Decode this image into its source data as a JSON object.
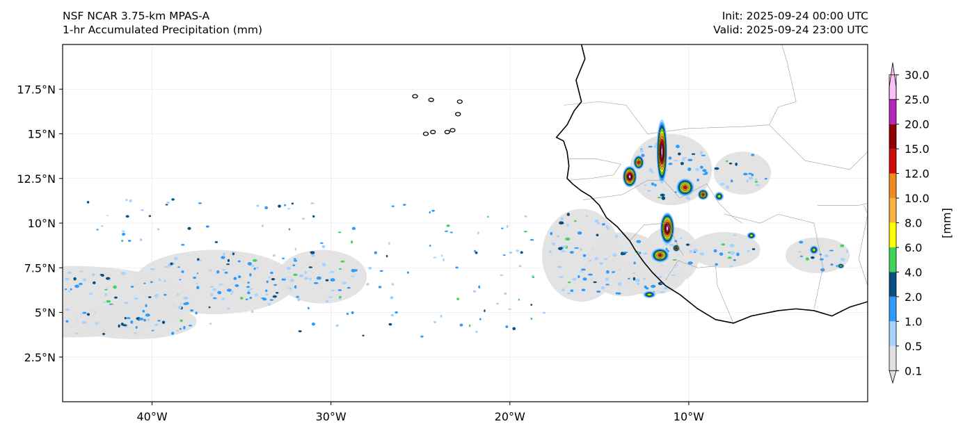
{
  "header": {
    "model": "NSF NCAR 3.75-km MPAS-A",
    "field": "1-hr Accumulated Precipitation (mm)",
    "init": "Init: 2025-09-24 00:00 UTC",
    "valid": "Valid: 2025-09-24 23:00 UTC"
  },
  "map": {
    "lon_range": [
      -45.0,
      0.0
    ],
    "lat_range": [
      0.0,
      20.0
    ],
    "lat_ticks": [
      {
        "value": 2.5,
        "label": "2.5°N"
      },
      {
        "value": 5,
        "label": "5°N"
      },
      {
        "value": 7.5,
        "label": "7.5°N"
      },
      {
        "value": 10,
        "label": "10°N"
      },
      {
        "value": 12.5,
        "label": "12.5°N"
      },
      {
        "value": 15,
        "label": "15°N"
      },
      {
        "value": 17.5,
        "label": "17.5°N"
      }
    ],
    "lon_ticks": [
      {
        "value": -40,
        "label": "40°W"
      },
      {
        "value": -30,
        "label": "30°W"
      },
      {
        "value": -20,
        "label": "20°W"
      },
      {
        "value": -10,
        "label": "10°W"
      }
    ],
    "coastline": [
      [
        -16.0,
        20.0
      ],
      [
        -15.8,
        19.2
      ],
      [
        -16.3,
        18.0
      ],
      [
        -16.0,
        16.8
      ],
      [
        -16.4,
        16.3
      ],
      [
        -16.8,
        15.5
      ],
      [
        -17.4,
        14.8
      ],
      [
        -17.0,
        14.6
      ],
      [
        -16.8,
        14.0
      ],
      [
        -16.7,
        13.2
      ],
      [
        -16.8,
        12.5
      ],
      [
        -16.5,
        12.2
      ],
      [
        -16.0,
        11.8
      ],
      [
        -15.5,
        11.5
      ],
      [
        -15.0,
        11.0
      ],
      [
        -14.6,
        10.3
      ],
      [
        -14.0,
        9.8
      ],
      [
        -13.3,
        9.0
      ],
      [
        -13.0,
        8.5
      ],
      [
        -12.5,
        7.8
      ],
      [
        -12.0,
        7.2
      ],
      [
        -11.3,
        6.5
      ],
      [
        -10.5,
        6.0
      ],
      [
        -9.5,
        5.2
      ],
      [
        -8.5,
        4.6
      ],
      [
        -7.5,
        4.4
      ],
      [
        -6.5,
        4.8
      ],
      [
        -5.0,
        5.1
      ],
      [
        -4.0,
        5.2
      ],
      [
        -3.0,
        5.1
      ],
      [
        -2.0,
        4.8
      ],
      [
        -1.0,
        5.3
      ],
      [
        0.0,
        5.6
      ]
    ],
    "islands": [
      [
        -25.3,
        17.1
      ],
      [
        -24.4,
        16.9
      ],
      [
        -22.8,
        16.8
      ],
      [
        -22.9,
        16.1
      ],
      [
        -24.3,
        15.1
      ],
      [
        -23.5,
        15.1
      ],
      [
        -23.2,
        15.2
      ],
      [
        -24.7,
        15.0
      ]
    ],
    "borders": [
      [
        [
          -17.0,
          16.6
        ],
        [
          -15.0,
          16.8
        ],
        [
          -13.5,
          16.6
        ],
        [
          -12.3,
          15.0
        ],
        [
          -11.5,
          15.1
        ],
        [
          -10.0,
          15.3
        ],
        [
          -7.0,
          15.4
        ],
        [
          -5.5,
          15.5
        ],
        [
          -5.0,
          16.5
        ],
        [
          -4.0,
          16.8
        ],
        [
          -4.5,
          19.0
        ],
        [
          -4.8,
          20.0
        ]
      ],
      [
        [
          -16.7,
          13.6
        ],
        [
          -15.2,
          13.6
        ],
        [
          -13.8,
          13.3
        ],
        [
          -14.2,
          12.7
        ],
        [
          -15.5,
          12.5
        ],
        [
          -16.7,
          12.4
        ]
      ],
      [
        [
          -15.9,
          11.3
        ],
        [
          -13.7,
          11.6
        ],
        [
          -12.3,
          12.4
        ],
        [
          -11.4,
          12.4
        ],
        [
          -10.5,
          11.4
        ],
        [
          -9.0,
          12.2
        ],
        [
          -8.3,
          11.1
        ],
        [
          -7.5,
          10.3
        ],
        [
          -7.0,
          10.0
        ]
      ],
      [
        [
          -13.3,
          9.0
        ],
        [
          -12.5,
          9.9
        ],
        [
          -11.2,
          10.0
        ],
        [
          -10.5,
          8.5
        ],
        [
          -10.3,
          8.2
        ]
      ],
      [
        [
          -11.3,
          6.8
        ],
        [
          -10.6,
          7.9
        ],
        [
          -9.5,
          7.5
        ],
        [
          -8.5,
          7.6
        ],
        [
          -8.4,
          6.5
        ],
        [
          -7.5,
          4.4
        ]
      ],
      [
        [
          -8.0,
          10.5
        ],
        [
          -6.0,
          10.0
        ],
        [
          -5.0,
          10.5
        ],
        [
          -3.0,
          10.0
        ],
        [
          -2.8,
          9.0
        ],
        [
          -2.5,
          7.5
        ],
        [
          -3.0,
          5.2
        ]
      ],
      [
        [
          -5.5,
          15.5
        ],
        [
          -3.5,
          13.5
        ],
        [
          -1.0,
          13.0
        ],
        [
          0.0,
          14.0
        ]
      ],
      [
        [
          -2.8,
          11.0
        ],
        [
          -0.5,
          11.0
        ],
        [
          0.0,
          11.1
        ]
      ],
      [
        [
          -0.2,
          11.0
        ],
        [
          0.0,
          10.5
        ],
        [
          -0.5,
          8.0
        ],
        [
          0.0,
          6.5
        ]
      ]
    ],
    "precip_regions": [
      [
        -44.5,
        5.6,
        6.8,
        2.0
      ],
      [
        -36.5,
        6.7,
        4.5,
        1.8
      ],
      [
        -30.5,
        7.0,
        2.5,
        1.5
      ],
      [
        -41.0,
        4.5,
        3.5,
        1.0
      ],
      [
        -16.0,
        8.2,
        2.2,
        2.6
      ],
      [
        -13.6,
        7.7,
        2.2,
        1.8
      ],
      [
        -11.0,
        8.2,
        1.6,
        1.6
      ],
      [
        -12.2,
        7.0,
        2.0,
        1.0
      ],
      [
        -11.0,
        13.0,
        2.3,
        2.0
      ],
      [
        -7.0,
        12.8,
        1.6,
        1.2
      ],
      [
        -2.8,
        8.2,
        1.8,
        1.0
      ],
      [
        -8.0,
        8.5,
        2.0,
        1.0
      ]
    ],
    "storm_cells": [
      [
        -11.5,
        14.0,
        0.3,
        1.8,
        2
      ],
      [
        -13.3,
        12.6,
        0.4,
        0.6,
        2
      ],
      [
        -10.2,
        12.0,
        0.5,
        0.5,
        1
      ],
      [
        -11.2,
        9.7,
        0.4,
        0.9,
        2
      ],
      [
        -11.6,
        8.2,
        0.5,
        0.4,
        1
      ],
      [
        -12.8,
        13.4,
        0.3,
        0.4,
        1
      ],
      [
        -9.2,
        11.6,
        0.3,
        0.3,
        1
      ],
      [
        -8.3,
        11.5,
        0.25,
        0.25,
        0
      ],
      [
        -6.5,
        9.3,
        0.25,
        0.2,
        0
      ],
      [
        -3.0,
        8.5,
        0.25,
        0.25,
        0
      ],
      [
        -1.5,
        7.6,
        0.2,
        0.15,
        0
      ],
      [
        -12.2,
        6.0,
        0.35,
        0.2,
        0
      ],
      [
        -10.7,
        8.6,
        0.2,
        0.2,
        1
      ]
    ]
  },
  "colorbar": {
    "unit": "[mm]",
    "levels": [
      "0.1",
      "0.5",
      "1.0",
      "2.0",
      "4.0",
      "6.0",
      "8.0",
      "10.0",
      "12.0",
      "15.0",
      "20.0",
      "25.0",
      "30.0"
    ],
    "colors": [
      "#e1e1e1",
      "#a5d2ff",
      "#2e9bff",
      "#0a4f82",
      "#41d45a",
      "#ffff00",
      "#f9b43c",
      "#f08c1e",
      "#cd0a0a",
      "#910000",
      "#b428b9",
      "#ffc0f8"
    ]
  }
}
